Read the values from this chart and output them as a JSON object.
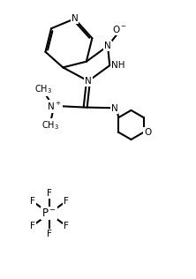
{
  "bg_color": "#ffffff",
  "line_color": "#000000",
  "text_color": "#000000",
  "bond_width": 1.5,
  "figsize": [
    2.22,
    3.16
  ],
  "dpi": 100,
  "xlim": [
    0,
    10
  ],
  "ylim": [
    0,
    14
  ]
}
